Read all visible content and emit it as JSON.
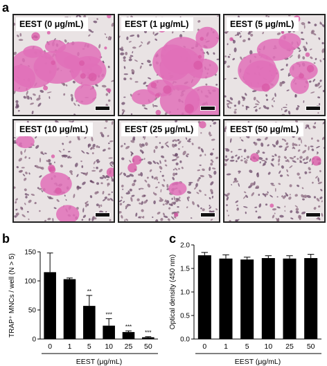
{
  "panels": {
    "a": {
      "letter": "a"
    },
    "b": {
      "letter": "b"
    },
    "c": {
      "letter": "c"
    }
  },
  "micrographs": [
    {
      "label": "EEST (0 μg/mL)",
      "density": 1.0
    },
    {
      "label": "EEST (1 μg/mL)",
      "density": 0.85
    },
    {
      "label": "EEST (5 μg/mL)",
      "density": 0.55
    },
    {
      "label": "EEST (10 μg/mL)",
      "density": 0.3
    },
    {
      "label": "EEST (25 μg/mL)",
      "density": 0.12
    },
    {
      "label": "EEST (50 μg/mL)",
      "density": 0.04
    }
  ],
  "chart_data": [
    {
      "type": "bar",
      "categories": [
        "0",
        "1",
        "5",
        "10",
        "25",
        "50"
      ],
      "values": [
        115,
        103,
        57,
        23,
        12,
        3
      ],
      "errors": [
        33,
        2,
        18,
        12,
        2,
        1
      ],
      "annotations": [
        "",
        "",
        "**",
        "***",
        "***",
        "***"
      ],
      "xlabel": "EEST (μg/mL)",
      "ylabel": "TRAP⁺ MNCs / well (N > 5)",
      "ylim": [
        0,
        150
      ],
      "yticks": [
        "0",
        "50",
        "100",
        "150"
      ],
      "color": "#000000"
    },
    {
      "type": "bar",
      "categories": [
        "0",
        "1",
        "5",
        "10",
        "25",
        "50"
      ],
      "values": [
        1.78,
        1.71,
        1.69,
        1.72,
        1.71,
        1.72
      ],
      "errors": [
        0.06,
        0.08,
        0.05,
        0.05,
        0.06,
        0.08
      ],
      "xlabel": "EEST (μg/mL)",
      "ylabel": "Optical density (450 nm)",
      "ylim": [
        0,
        2.0
      ],
      "yticks": [
        "0.0",
        "0.5",
        "1.0",
        "1.5",
        "2.0"
      ],
      "color": "#000000"
    }
  ]
}
